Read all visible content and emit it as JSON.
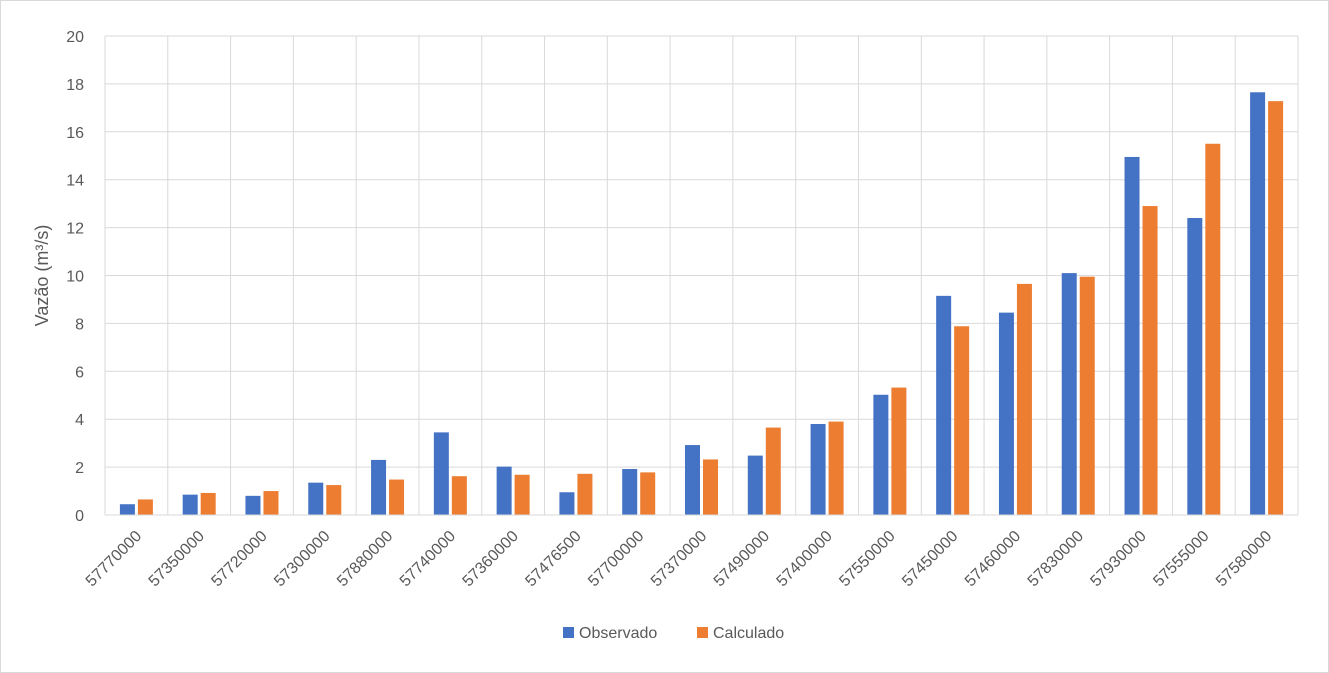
{
  "chart_data": {
    "type": "bar",
    "title": "",
    "xlabel": "",
    "ylabel": "Vazão (m³/s)",
    "ylim": [
      0,
      20
    ],
    "yticks": [
      "0",
      "2",
      "4",
      "6",
      "8",
      "10",
      "12",
      "14",
      "16",
      "18",
      "20"
    ],
    "grid": true,
    "legend_position": "bottom",
    "categories": [
      "57770000",
      "57350000",
      "57720000",
      "57300000",
      "57880000",
      "57740000",
      "57360000",
      "57476500",
      "57700000",
      "57370000",
      "57490000",
      "57400000",
      "57550000",
      "57450000",
      "57460000",
      "57830000",
      "57930000",
      "57555000",
      "57580000"
    ],
    "series": [
      {
        "name": "Observado",
        "color": "#4472c4",
        "values": [
          0.45,
          0.85,
          0.8,
          1.35,
          2.3,
          3.45,
          2.02,
          0.95,
          1.92,
          2.92,
          2.48,
          3.8,
          5.02,
          9.15,
          8.45,
          10.1,
          14.95,
          12.4,
          17.65
        ]
      },
      {
        "name": "Calculado",
        "color": "#ed7d31",
        "values": [
          0.65,
          0.92,
          1.0,
          1.25,
          1.48,
          1.62,
          1.68,
          1.72,
          1.78,
          2.32,
          3.65,
          3.9,
          5.32,
          7.88,
          9.65,
          9.95,
          12.9,
          15.5,
          17.28
        ]
      }
    ]
  }
}
